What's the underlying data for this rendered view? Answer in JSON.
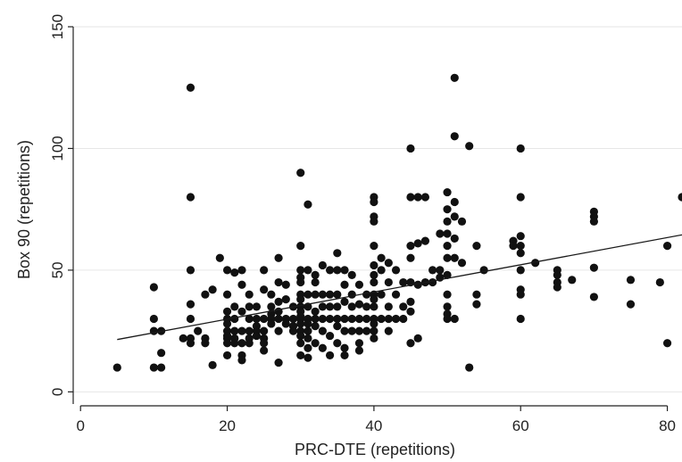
{
  "chart_data": {
    "type": "scatter",
    "title": "",
    "xlabel": "PRC-DTE (repetitions)",
    "ylabel": "Box 90 (repetitions)",
    "xlim": [
      -1,
      82
    ],
    "ylim": [
      -5,
      150
    ],
    "xticks": [
      0,
      20,
      40,
      60,
      80
    ],
    "yticks": [
      0,
      50,
      100,
      150
    ],
    "grid": "horizontal",
    "legend": "none",
    "colors": {
      "points": "#111111",
      "fit_line": "#1a1a1a",
      "grid": "#e6e6e6"
    },
    "trendline": {
      "x": [
        5,
        82
      ],
      "y": [
        21.5,
        64.5
      ]
    },
    "points": [
      [
        5,
        10
      ],
      [
        10,
        10
      ],
      [
        11,
        10
      ],
      [
        10,
        43
      ],
      [
        10,
        30
      ],
      [
        10,
        25
      ],
      [
        11,
        25
      ],
      [
        11,
        16
      ],
      [
        14,
        22
      ],
      [
        15,
        125
      ],
      [
        15,
        80
      ],
      [
        15,
        50
      ],
      [
        15,
        36
      ],
      [
        15,
        30
      ],
      [
        15,
        22
      ],
      [
        15,
        20
      ],
      [
        16,
        25
      ],
      [
        17,
        22
      ],
      [
        17,
        20
      ],
      [
        17,
        40
      ],
      [
        18,
        42
      ],
      [
        18,
        11
      ],
      [
        19,
        55
      ],
      [
        20,
        50
      ],
      [
        20,
        40
      ],
      [
        20,
        33
      ],
      [
        20,
        30
      ],
      [
        20,
        28
      ],
      [
        20,
        25
      ],
      [
        20,
        23
      ],
      [
        20,
        22
      ],
      [
        20,
        20
      ],
      [
        20,
        15
      ],
      [
        21,
        49
      ],
      [
        21,
        35
      ],
      [
        21,
        30
      ],
      [
        21,
        25
      ],
      [
        21,
        22
      ],
      [
        21,
        20
      ],
      [
        22,
        50
      ],
      [
        22,
        44
      ],
      [
        22,
        33
      ],
      [
        22,
        25
      ],
      [
        22,
        20
      ],
      [
        22,
        15
      ],
      [
        22,
        13
      ],
      [
        23,
        40
      ],
      [
        23,
        35
      ],
      [
        23,
        30
      ],
      [
        23,
        25
      ],
      [
        23,
        22
      ],
      [
        23,
        20
      ],
      [
        24,
        35
      ],
      [
        24,
        30
      ],
      [
        24,
        27
      ],
      [
        24,
        25
      ],
      [
        24,
        23
      ],
      [
        25,
        50
      ],
      [
        25,
        42
      ],
      [
        25,
        30
      ],
      [
        25,
        25
      ],
      [
        25,
        22
      ],
      [
        25,
        20
      ],
      [
        25,
        17
      ],
      [
        26,
        40
      ],
      [
        26,
        35
      ],
      [
        26,
        32
      ],
      [
        26,
        30
      ],
      [
        26,
        28
      ],
      [
        27,
        55
      ],
      [
        27,
        45
      ],
      [
        27,
        37
      ],
      [
        27,
        33
      ],
      [
        27,
        30
      ],
      [
        27,
        25
      ],
      [
        27,
        12
      ],
      [
        28,
        44
      ],
      [
        28,
        38
      ],
      [
        28,
        30
      ],
      [
        28,
        28
      ],
      [
        29,
        35
      ],
      [
        29,
        30
      ],
      [
        29,
        27
      ],
      [
        29,
        25
      ],
      [
        30,
        90
      ],
      [
        30,
        60
      ],
      [
        30,
        50
      ],
      [
        30,
        47
      ],
      [
        30,
        45
      ],
      [
        30,
        40
      ],
      [
        30,
        38
      ],
      [
        30,
        35
      ],
      [
        30,
        33
      ],
      [
        30,
        31
      ],
      [
        30,
        30
      ],
      [
        30,
        28
      ],
      [
        30,
        25
      ],
      [
        30,
        23
      ],
      [
        30,
        20
      ],
      [
        30,
        15
      ],
      [
        31,
        77
      ],
      [
        31,
        50
      ],
      [
        31,
        40
      ],
      [
        31,
        35
      ],
      [
        31,
        30
      ],
      [
        31,
        28
      ],
      [
        31,
        25
      ],
      [
        31,
        22
      ],
      [
        31,
        18
      ],
      [
        31,
        14
      ],
      [
        32,
        48
      ],
      [
        32,
        45
      ],
      [
        32,
        40
      ],
      [
        32,
        33
      ],
      [
        32,
        30
      ],
      [
        32,
        27
      ],
      [
        32,
        20
      ],
      [
        33,
        52
      ],
      [
        33,
        40
      ],
      [
        33,
        35
      ],
      [
        33,
        30
      ],
      [
        33,
        25
      ],
      [
        33,
        18
      ],
      [
        34,
        50
      ],
      [
        34,
        40
      ],
      [
        34,
        35
      ],
      [
        34,
        30
      ],
      [
        34,
        23
      ],
      [
        34,
        15
      ],
      [
        35,
        57
      ],
      [
        35,
        50
      ],
      [
        35,
        40
      ],
      [
        35,
        35
      ],
      [
        35,
        30
      ],
      [
        35,
        27
      ],
      [
        35,
        20
      ],
      [
        36,
        50
      ],
      [
        36,
        44
      ],
      [
        36,
        37
      ],
      [
        36,
        30
      ],
      [
        36,
        25
      ],
      [
        36,
        18
      ],
      [
        36,
        15
      ],
      [
        37,
        48
      ],
      [
        37,
        40
      ],
      [
        37,
        35
      ],
      [
        37,
        30
      ],
      [
        37,
        25
      ],
      [
        38,
        44
      ],
      [
        38,
        36
      ],
      [
        38,
        30
      ],
      [
        38,
        25
      ],
      [
        38,
        20
      ],
      [
        38,
        17
      ],
      [
        39,
        40
      ],
      [
        39,
        35
      ],
      [
        39,
        30
      ],
      [
        39,
        25
      ],
      [
        40,
        80
      ],
      [
        40,
        78
      ],
      [
        40,
        72
      ],
      [
        40,
        70
      ],
      [
        40,
        60
      ],
      [
        40,
        52
      ],
      [
        40,
        48
      ],
      [
        40,
        45
      ],
      [
        40,
        40
      ],
      [
        40,
        38
      ],
      [
        40,
        35
      ],
      [
        40,
        30
      ],
      [
        40,
        28
      ],
      [
        40,
        25
      ],
      [
        40,
        22
      ],
      [
        41,
        55
      ],
      [
        41,
        50
      ],
      [
        41,
        40
      ],
      [
        41,
        30
      ],
      [
        42,
        53
      ],
      [
        42,
        45
      ],
      [
        42,
        35
      ],
      [
        42,
        30
      ],
      [
        42,
        25
      ],
      [
        43,
        50
      ],
      [
        43,
        40
      ],
      [
        43,
        30
      ],
      [
        44,
        45
      ],
      [
        44,
        35
      ],
      [
        44,
        30
      ],
      [
        45,
        100
      ],
      [
        45,
        80
      ],
      [
        45,
        60
      ],
      [
        45,
        55
      ],
      [
        45,
        45
      ],
      [
        45,
        37
      ],
      [
        45,
        33
      ],
      [
        45,
        20
      ],
      [
        46,
        80
      ],
      [
        46,
        61
      ],
      [
        46,
        44
      ],
      [
        46,
        22
      ],
      [
        47,
        80
      ],
      [
        47,
        62
      ],
      [
        47,
        45
      ],
      [
        48,
        50
      ],
      [
        48,
        45
      ],
      [
        49,
        65
      ],
      [
        49,
        50
      ],
      [
        49,
        47
      ],
      [
        50,
        82
      ],
      [
        50,
        75
      ],
      [
        50,
        70
      ],
      [
        50,
        65
      ],
      [
        50,
        60
      ],
      [
        50,
        55
      ],
      [
        50,
        48
      ],
      [
        50,
        40
      ],
      [
        50,
        35
      ],
      [
        50,
        32
      ],
      [
        50,
        30
      ],
      [
        51,
        129
      ],
      [
        51,
        105
      ],
      [
        51,
        78
      ],
      [
        51,
        72
      ],
      [
        51,
        63
      ],
      [
        51,
        55
      ],
      [
        51,
        30
      ],
      [
        52,
        70
      ],
      [
        52,
        53
      ],
      [
        53,
        101
      ],
      [
        53,
        10
      ],
      [
        54,
        60
      ],
      [
        54,
        40
      ],
      [
        54,
        36
      ],
      [
        55,
        50
      ],
      [
        59,
        62
      ],
      [
        59,
        60
      ],
      [
        60,
        100
      ],
      [
        60,
        80
      ],
      [
        60,
        64
      ],
      [
        60,
        60
      ],
      [
        60,
        57
      ],
      [
        60,
        50
      ],
      [
        60,
        42
      ],
      [
        60,
        40
      ],
      [
        60,
        30
      ],
      [
        62,
        53
      ],
      [
        65,
        50
      ],
      [
        65,
        48
      ],
      [
        65,
        45
      ],
      [
        65,
        43
      ],
      [
        67,
        46
      ],
      [
        70,
        74
      ],
      [
        70,
        72
      ],
      [
        70,
        70
      ],
      [
        70,
        51
      ],
      [
        70,
        39
      ],
      [
        75,
        46
      ],
      [
        75,
        36
      ],
      [
        79,
        45
      ],
      [
        80,
        60
      ],
      [
        80,
        20
      ],
      [
        82,
        80
      ]
    ]
  }
}
